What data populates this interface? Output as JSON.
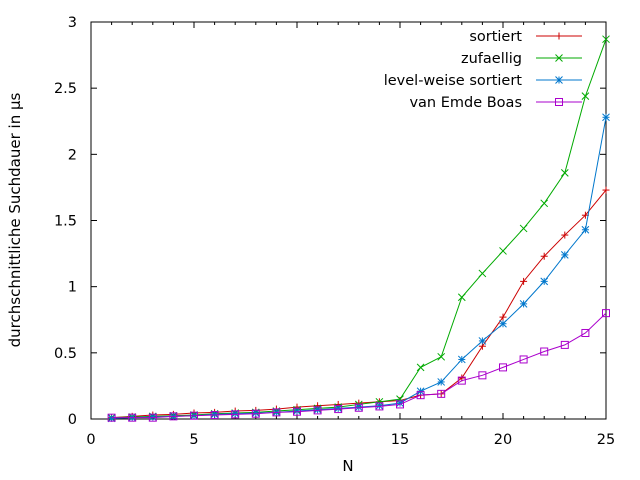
{
  "chart_data": {
    "type": "line",
    "title": "",
    "xlabel": "N",
    "ylabel": "durchschnittliche Suchdauer in µs",
    "xlim": [
      0,
      25
    ],
    "ylim": [
      0,
      3
    ],
    "x_ticks": [
      0,
      5,
      10,
      15,
      20,
      25
    ],
    "y_ticks": [
      0,
      0.5,
      1,
      1.5,
      2,
      2.5,
      3
    ],
    "x_tick_labels": [
      "0",
      "5",
      "10",
      "15",
      "20",
      "25"
    ],
    "y_tick_labels": [
      "0",
      "0.5",
      "1",
      "1.5",
      "2",
      "2.5",
      "3"
    ],
    "grid": false,
    "legend_position": "top-right",
    "x": [
      1,
      2,
      3,
      4,
      5,
      6,
      7,
      8,
      9,
      10,
      11,
      12,
      13,
      14,
      15,
      16,
      17,
      18,
      19,
      20,
      21,
      22,
      23,
      24,
      25
    ],
    "series": [
      {
        "name": "sortiert",
        "color": "#cc0000",
        "marker": "plus",
        "values": [
          0.01,
          0.02,
          0.03,
          0.035,
          0.045,
          0.05,
          0.06,
          0.065,
          0.075,
          0.09,
          0.1,
          0.11,
          0.12,
          0.13,
          0.14,
          0.18,
          0.19,
          0.31,
          0.55,
          0.77,
          1.04,
          1.23,
          1.39,
          1.54,
          1.73
        ]
      },
      {
        "name": "zufaellig",
        "color": "#00aa00",
        "marker": "cross",
        "values": [
          0.01,
          0.015,
          0.02,
          0.025,
          0.03,
          0.04,
          0.045,
          0.05,
          0.06,
          0.07,
          0.08,
          0.09,
          0.11,
          0.13,
          0.15,
          0.39,
          0.47,
          0.92,
          1.1,
          1.27,
          1.44,
          1.63,
          1.86,
          2.44,
          2.87
        ]
      },
      {
        "name": "level-weise sortiert",
        "color": "#0077cc",
        "marker": "star",
        "values": [
          0.005,
          0.01,
          0.015,
          0.02,
          0.025,
          0.035,
          0.04,
          0.045,
          0.05,
          0.06,
          0.07,
          0.08,
          0.09,
          0.1,
          0.12,
          0.21,
          0.28,
          0.45,
          0.59,
          0.72,
          0.87,
          1.04,
          1.24,
          1.43,
          2.28
        ]
      },
      {
        "name": "van Emde Boas",
        "color": "#aa00cc",
        "marker": "square",
        "values": [
          0.01,
          0.01,
          0.01,
          0.02,
          0.025,
          0.03,
          0.035,
          0.04,
          0.05,
          0.055,
          0.065,
          0.075,
          0.085,
          0.095,
          0.11,
          0.18,
          0.19,
          0.29,
          0.33,
          0.39,
          0.45,
          0.51,
          0.56,
          0.65,
          0.8
        ]
      }
    ]
  }
}
